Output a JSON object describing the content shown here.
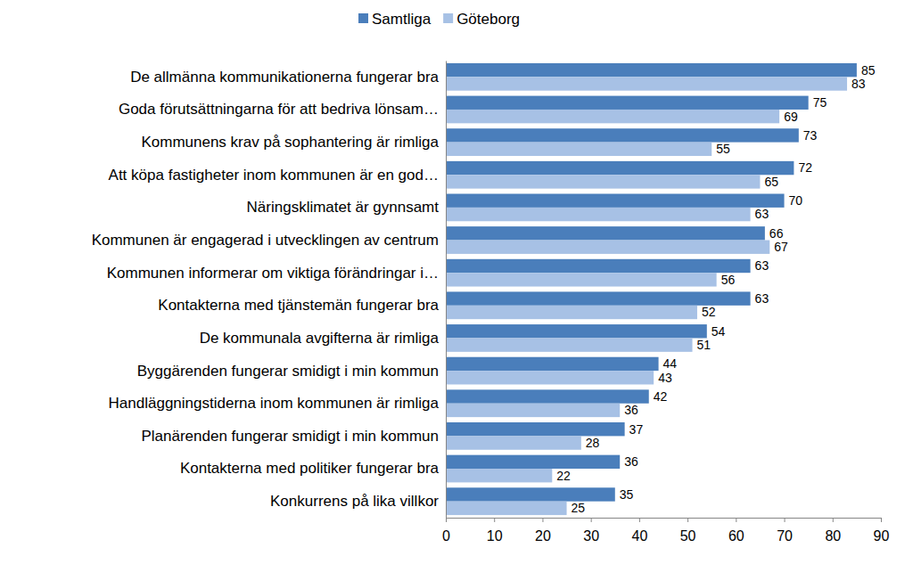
{
  "chart_data": {
    "type": "bar",
    "orientation": "horizontal",
    "categories": [
      "De allmänna kommunikationerna fungerar bra",
      "Goda förutsättningarna för att bedriva lönsam…",
      "Kommunens krav på sophantering är rimliga",
      "Att köpa fastigheter inom kommunen är en god…",
      "Näringsklimatet är gynnsamt",
      "Kommunen är engagerad i utvecklingen av centrum",
      "Kommunen informerar om viktiga förändringar i…",
      "Kontakterna med tjänstemän fungerar bra",
      "De kommunala avgifterna är rimliga",
      "Byggärenden fungerar smidigt i min kommun",
      "Handläggningstiderna inom kommunen är rimliga",
      "Planärenden fungerar smidigt i min kommun",
      "Kontakterna med politiker fungerar bra",
      "Konkurrens på lika villkor"
    ],
    "series": [
      {
        "name": "Samtliga",
        "color": "#4a7ebb",
        "values": [
          85,
          75,
          73,
          72,
          70,
          66,
          63,
          63,
          54,
          44,
          42,
          37,
          36,
          35
        ]
      },
      {
        "name": "Göteborg",
        "color": "#a7c1e5",
        "values": [
          83,
          69,
          55,
          65,
          63,
          67,
          56,
          52,
          51,
          43,
          36,
          28,
          22,
          25
        ]
      }
    ],
    "xlim": [
      0,
      90
    ],
    "xticks": [
      0,
      10,
      20,
      30,
      40,
      50,
      60,
      70,
      80,
      90
    ],
    "grid": false,
    "legend": "top",
    "data_labels": true
  }
}
